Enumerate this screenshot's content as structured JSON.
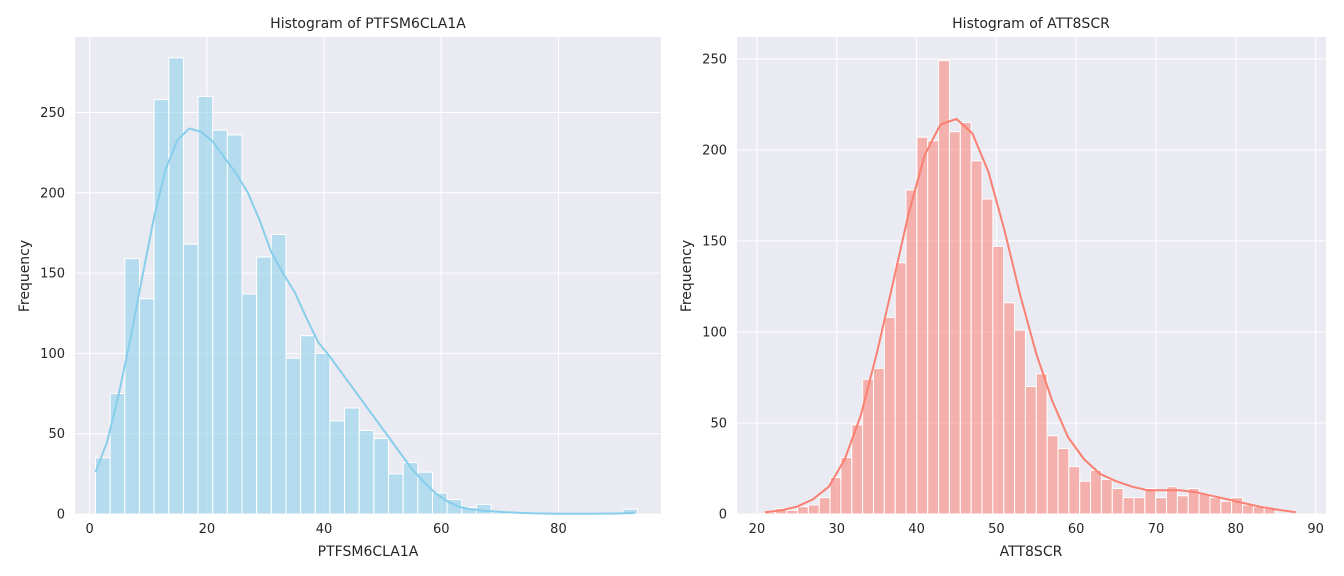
{
  "chart_data": [
    {
      "type": "bar",
      "title": "Histogram of PTFSM6CLA1A",
      "xlabel": "PTFSM6CLA1A",
      "ylabel": "Frequency",
      "xlim": [
        -2.5,
        97.5
      ],
      "ylim": [
        0,
        297
      ],
      "xticks": [
        0,
        20,
        40,
        60,
        80
      ],
      "yticks": [
        0,
        50,
        100,
        150,
        200,
        250
      ],
      "grid": true,
      "colors": {
        "bar": "#87ceeb",
        "kde": "#87ceeb",
        "background": "#eaeaf2",
        "grid": "#ffffff"
      },
      "bin_edges": [
        1.0,
        3.5,
        6.0,
        8.5,
        11.0,
        13.5,
        16.0,
        18.5,
        21.0,
        23.5,
        26.0,
        28.5,
        31.0,
        33.5,
        36.0,
        38.5,
        41.0,
        43.5,
        46.0,
        48.5,
        51.0,
        53.5,
        56.0,
        58.5,
        61.0,
        63.5,
        66.0,
        68.5,
        71.0,
        73.5,
        76.0,
        78.5,
        81.0,
        83.5,
        86.0,
        88.5,
        91.0,
        93.5
      ],
      "counts": [
        35,
        75,
        159,
        134,
        258,
        284,
        168,
        260,
        239,
        236,
        137,
        160,
        174,
        97,
        111,
        100,
        58,
        66,
        52,
        47,
        25,
        32,
        26,
        13,
        9,
        4,
        6,
        1,
        0,
        0,
        0,
        0,
        0,
        0,
        0,
        0,
        3
      ],
      "kde": {
        "x": [
          1,
          3,
          5,
          7,
          9,
          11,
          13,
          15,
          17,
          19,
          21,
          23,
          25,
          27,
          29,
          31,
          33,
          35,
          37,
          39,
          41,
          43,
          45,
          47,
          49,
          51,
          53,
          55,
          57,
          59,
          61,
          63,
          65,
          67,
          70,
          73,
          76,
          80,
          85,
          90,
          93
        ],
        "y": [
          26,
          45,
          75,
          110,
          148,
          185,
          215,
          233,
          240,
          238,
          232,
          222,
          212,
          200,
          183,
          163,
          150,
          138,
          122,
          107,
          98,
          88,
          78,
          68,
          58,
          48,
          38,
          28,
          20,
          13,
          8,
          4.5,
          3,
          2,
          1.3,
          0.8,
          0.4,
          0.2,
          0.1,
          0.3,
          0.6
        ]
      }
    },
    {
      "type": "bar",
      "title": "Histogram of ATT8SCR",
      "xlabel": "ATT8SCR",
      "ylabel": "Frequency",
      "xlim": [
        17.5,
        91.3
      ],
      "ylim": [
        0,
        262
      ],
      "xticks": [
        20,
        30,
        40,
        50,
        60,
        70,
        80,
        90
      ],
      "yticks": [
        0,
        50,
        100,
        150,
        200,
        250
      ],
      "grid": true,
      "colors": {
        "bar": "#fa8072",
        "kde": "#fa8072",
        "background": "#eaeaf2",
        "grid": "#ffffff"
      },
      "bin_edges": [
        21.0,
        22.36,
        23.72,
        25.08,
        26.44,
        27.8,
        29.16,
        30.52,
        31.88,
        33.24,
        34.6,
        35.96,
        37.32,
        38.68,
        40.04,
        41.4,
        42.76,
        44.12,
        45.48,
        46.84,
        48.2,
        49.56,
        50.92,
        52.28,
        53.64,
        55.0,
        56.36,
        57.72,
        59.08,
        60.44,
        61.8,
        63.16,
        64.52,
        65.88,
        67.24,
        68.6,
        69.96,
        71.32,
        72.68,
        74.04,
        75.4,
        76.76,
        78.12,
        79.48,
        80.84,
        82.2,
        83.56,
        84.92
      ],
      "counts": [
        1,
        3,
        2,
        4,
        5,
        9,
        20,
        31,
        49,
        74,
        80,
        108,
        138,
        178,
        207,
        205,
        249,
        210,
        215,
        194,
        173,
        147,
        116,
        101,
        70,
        77,
        43,
        36,
        26,
        18,
        24,
        19,
        14,
        9,
        9,
        14,
        9,
        15,
        10,
        14,
        11,
        9,
        7,
        9,
        5,
        4,
        3
      ],
      "kde": {
        "x": [
          21,
          23,
          25,
          27,
          29,
          31,
          33,
          35,
          37,
          39,
          41,
          43,
          45,
          47,
          49,
          51,
          53,
          55,
          57,
          59,
          61,
          63,
          65,
          67,
          69,
          71,
          73,
          75,
          77,
          79,
          81,
          83,
          85,
          87.5
        ],
        "y": [
          1,
          2,
          4,
          8,
          15,
          30,
          54,
          88,
          126,
          165,
          197,
          214,
          217,
          209,
          188,
          156,
          120,
          88,
          62,
          42,
          30,
          22,
          18,
          15,
          13,
          13,
          13,
          12,
          10,
          8,
          6,
          4,
          2.5,
          1
        ]
      }
    }
  ]
}
